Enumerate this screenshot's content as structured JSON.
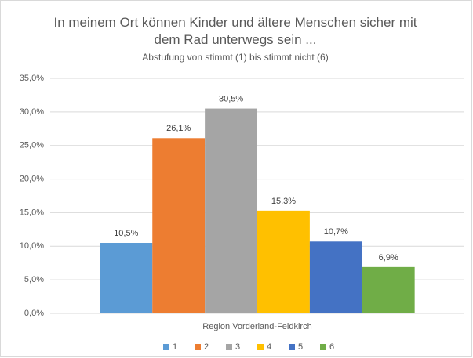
{
  "chart_data": {
    "type": "bar",
    "title": "In meinem Ort können Kinder und ältere Menschen sicher mit dem Rad unterwegs sein ...",
    "subtitle": "Abstufung von stimmt (1) bis stimmt nicht (6)",
    "categories": [
      "Region Vorderland-Feldkirch"
    ],
    "series": [
      {
        "name": "1",
        "color": "#5b9bd5",
        "values": [
          10.5
        ],
        "value_labels": [
          "10,5%"
        ]
      },
      {
        "name": "2",
        "color": "#ed7d31",
        "values": [
          26.1
        ],
        "value_labels": [
          "26,1%"
        ]
      },
      {
        "name": "3",
        "color": "#a5a5a5",
        "values": [
          30.5
        ],
        "value_labels": [
          "30,5%"
        ]
      },
      {
        "name": "4",
        "color": "#ffc000",
        "values": [
          15.3
        ],
        "value_labels": [
          "15,3%"
        ]
      },
      {
        "name": "5",
        "color": "#4472c4",
        "values": [
          10.7
        ],
        "value_labels": [
          "10,7%"
        ]
      },
      {
        "name": "6",
        "color": "#70ad47",
        "values": [
          6.9
        ],
        "value_labels": [
          "6,9%"
        ]
      }
    ],
    "ylim": [
      0,
      35
    ],
    "yticks": [
      {
        "value": 0,
        "label": "0,0%"
      },
      {
        "value": 5,
        "label": "5,0%"
      },
      {
        "value": 10,
        "label": "10,0%"
      },
      {
        "value": 15,
        "label": "15,0%"
      },
      {
        "value": 20,
        "label": "20,0%"
      },
      {
        "value": 25,
        "label": "25,0%"
      },
      {
        "value": 30,
        "label": "30,0%"
      },
      {
        "value": 35,
        "label": "35,0%"
      }
    ],
    "grid": true,
    "legend": "bottom"
  }
}
